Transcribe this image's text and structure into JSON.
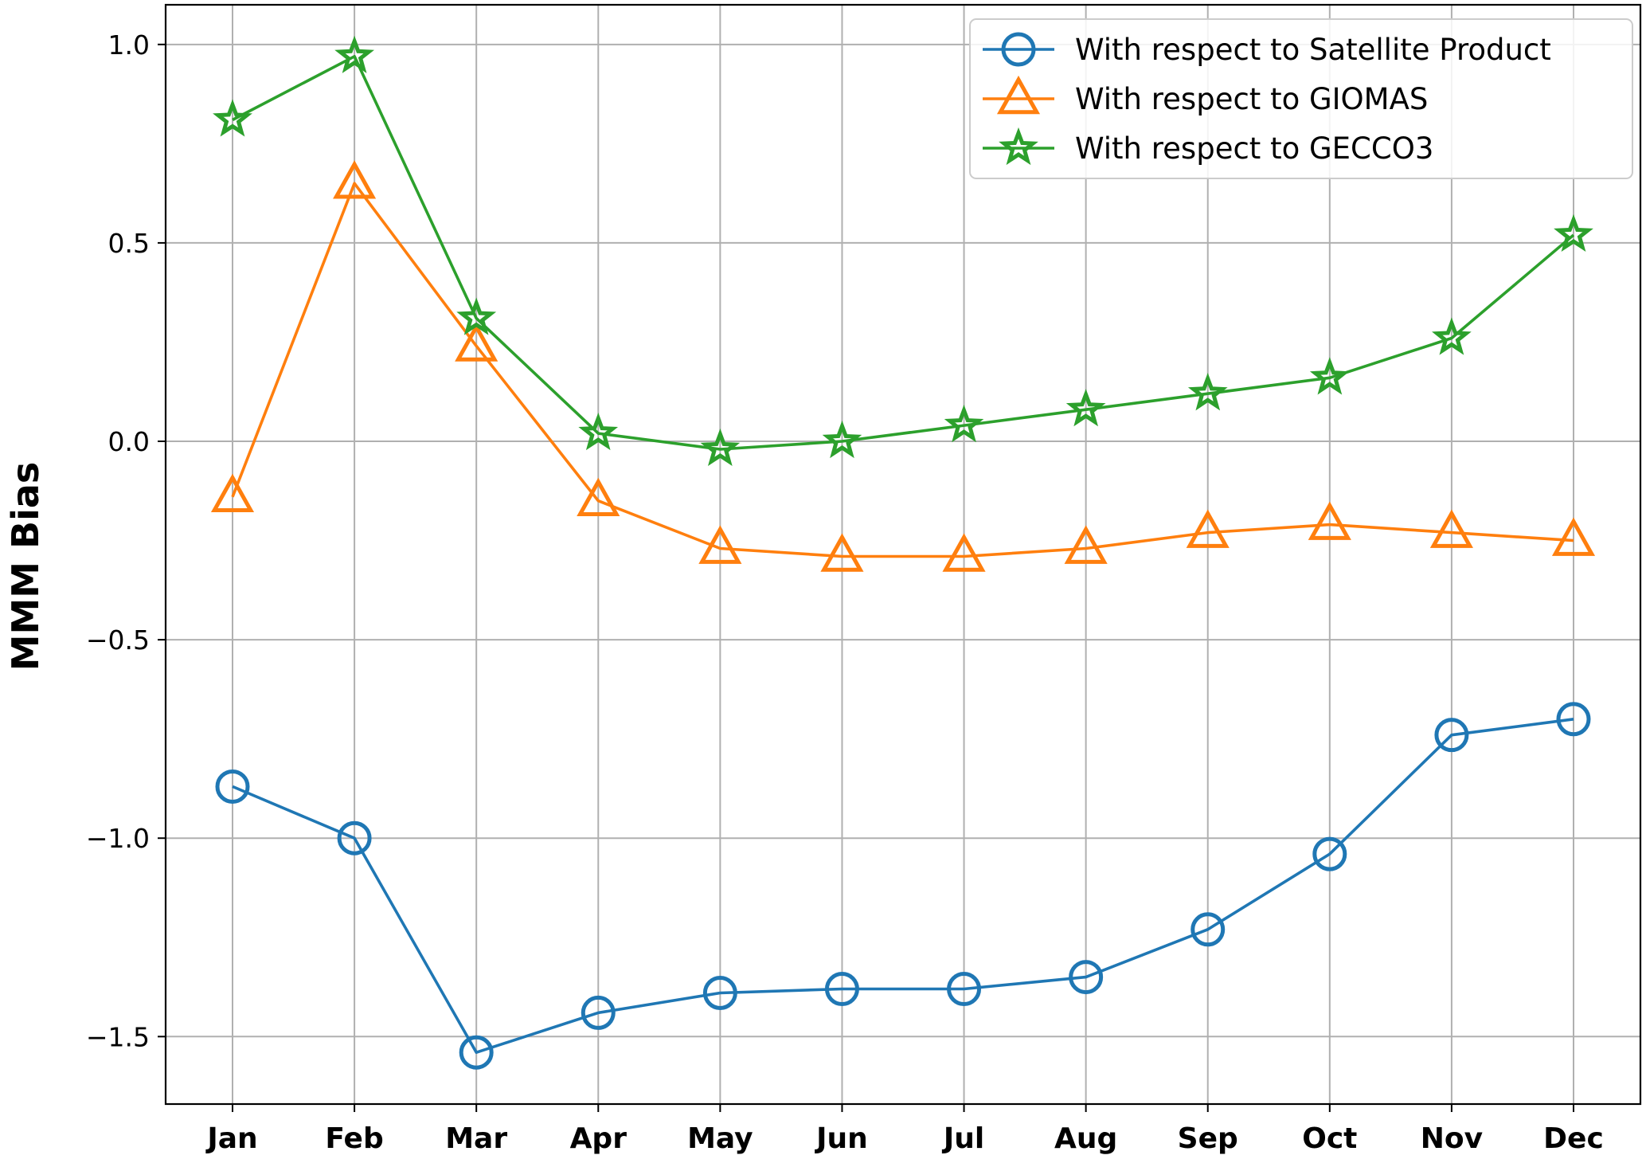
{
  "chart_data": {
    "type": "line",
    "title": "",
    "xlabel": "",
    "ylabel": "MMM Bias",
    "categories": [
      "Jan",
      "Feb",
      "Mar",
      "Apr",
      "May",
      "Jun",
      "Jul",
      "Aug",
      "Sep",
      "Oct",
      "Nov",
      "Dec"
    ],
    "ylim": [
      -1.67,
      1.1
    ],
    "yticks": [
      -1.5,
      -1.0,
      -0.5,
      0.0,
      0.5,
      1.0
    ],
    "ytick_labels": [
      "−1.5",
      "−1.0",
      "−0.5",
      "0.0",
      "0.5",
      "1.0"
    ],
    "grid": true,
    "legend_position": "top-right",
    "series": [
      {
        "name": "With respect to Satellite Product",
        "color": "#1f77b4",
        "marker": "circle",
        "values": [
          -0.87,
          -1.0,
          -1.54,
          -1.44,
          -1.39,
          -1.38,
          -1.38,
          -1.35,
          -1.23,
          -1.04,
          -0.74,
          -0.7
        ]
      },
      {
        "name": "With respect to GIOMAS",
        "color": "#ff7f0e",
        "marker": "triangle",
        "values": [
          -0.14,
          0.65,
          0.24,
          -0.15,
          -0.27,
          -0.29,
          -0.29,
          -0.27,
          -0.23,
          -0.21,
          -0.23,
          -0.25
        ]
      },
      {
        "name": "With respect to GECCO3",
        "color": "#2ca02c",
        "marker": "star",
        "values": [
          0.81,
          0.97,
          0.31,
          0.02,
          -0.02,
          0.0,
          0.04,
          0.08,
          0.12,
          0.16,
          0.26,
          0.52
        ]
      }
    ]
  }
}
